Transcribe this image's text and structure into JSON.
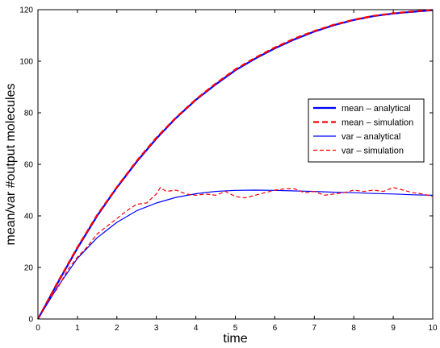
{
  "chart_data": {
    "type": "line",
    "xlabel": "time",
    "ylabel": "mean/var #output molecules",
    "xlim": [
      0,
      10
    ],
    "ylim": [
      0,
      120
    ],
    "xticks": [
      0,
      1,
      2,
      3,
      4,
      5,
      6,
      7,
      8,
      9,
      10
    ],
    "yticks": [
      0,
      20,
      40,
      60,
      80,
      100,
      120
    ],
    "grid": false,
    "legend_position": "right",
    "series": [
      {
        "name": "mean – analytical",
        "color": "#0000ff",
        "style": "solid-thick",
        "x": [
          0,
          0.5,
          1,
          1.5,
          2,
          2.5,
          3,
          3.5,
          4,
          4.5,
          5,
          5.5,
          6,
          6.5,
          7,
          7.5,
          8,
          8.5,
          9,
          9.5,
          10
        ],
        "y": [
          0,
          14,
          27.5,
          40,
          51,
          61,
          70,
          78,
          85,
          91,
          96.5,
          101,
          105,
          108.5,
          111.5,
          114,
          116,
          117.5,
          118.5,
          119.2,
          119.8
        ]
      },
      {
        "name": "mean – simulation",
        "color": "#ff0000",
        "style": "dashed-thick",
        "x": [
          0,
          0.5,
          1,
          1.5,
          2,
          2.5,
          3,
          3.5,
          4,
          4.5,
          5,
          5.5,
          6,
          6.5,
          7,
          7.5,
          8,
          8.5,
          9,
          9.5,
          10
        ],
        "y": [
          0,
          14.3,
          27.8,
          40.3,
          51.2,
          61.3,
          70.3,
          78.2,
          85.2,
          91.3,
          96.8,
          101.3,
          105.3,
          108.8,
          111.7,
          114.2,
          116.1,
          117.6,
          118.6,
          119.3,
          119.9
        ]
      },
      {
        "name": "var – analytical",
        "color": "#0000ff",
        "style": "solid-thin",
        "x": [
          0,
          0.5,
          1,
          1.5,
          2,
          2.5,
          3,
          3.5,
          4,
          4.5,
          5,
          5.5,
          6,
          6.5,
          7,
          7.5,
          8,
          8.5,
          9,
          9.5,
          10
        ],
        "y": [
          0,
          12.5,
          23.5,
          31.5,
          37.5,
          42,
          45,
          47.2,
          48.6,
          49.5,
          49.9,
          50,
          49.9,
          49.7,
          49.5,
          49.2,
          49,
          48.7,
          48.5,
          48.2,
          48
        ]
      },
      {
        "name": "var – simulation",
        "color": "#ff0000",
        "style": "dashed-thin",
        "x": [
          0,
          0.25,
          0.5,
          0.75,
          1,
          1.25,
          1.5,
          1.75,
          2,
          2.25,
          2.5,
          2.75,
          3,
          3.1,
          3.25,
          3.5,
          3.75,
          4,
          4.25,
          4.5,
          4.75,
          5,
          5.25,
          5.5,
          5.75,
          6,
          6.25,
          6.5,
          6.75,
          7,
          7.25,
          7.5,
          7.75,
          8,
          8.25,
          8.5,
          8.75,
          9,
          9.25,
          9.5,
          9.75,
          10
        ],
        "y": [
          0,
          7,
          12,
          19,
          24,
          28,
          33,
          36,
          39,
          42,
          44.5,
          45,
          48.5,
          51,
          49.5,
          50,
          48.5,
          48,
          48.5,
          48,
          49.5,
          47.5,
          47,
          48,
          49,
          50,
          50.5,
          50.5,
          49,
          49.5,
          48,
          48.5,
          49,
          50,
          49.5,
          50,
          49.5,
          51,
          50,
          49,
          48.5,
          47.5
        ]
      }
    ]
  }
}
